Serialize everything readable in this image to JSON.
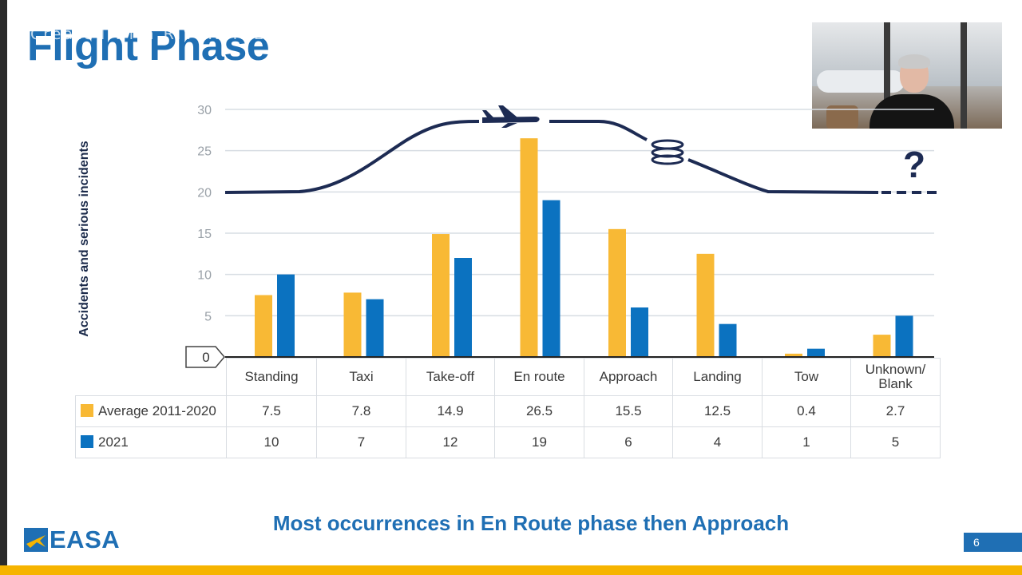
{
  "slide": {
    "title": "Flight Phase",
    "watermark": "Created with RIVERSIDE",
    "message": "Most occurrences in En Route phase then Approach",
    "page_number": "6",
    "logo_text": "EASA"
  },
  "phase_annotations": {
    "unknown_marker": "?"
  },
  "colors": {
    "average": "#f8b935",
    "year2021": "#0b72c0",
    "accent": "#1f6fb4",
    "flight_path": "#1d2b53"
  },
  "chart_data": {
    "type": "bar",
    "title": "Flight Phase",
    "ylabel": "Accidents and serious incidents",
    "xlabel": "",
    "ylim": [
      0,
      30
    ],
    "yticks": [
      0,
      5,
      10,
      15,
      20,
      25,
      30
    ],
    "grid": true,
    "legend": "table-below",
    "categories": [
      "Standing",
      "Taxi",
      "Take-off",
      "En route",
      "Approach",
      "Landing",
      "Tow",
      "Unknown/\nBlank"
    ],
    "series": [
      {
        "name": "Average 2011-2020",
        "values": [
          7.5,
          7.8,
          14.9,
          26.5,
          15.5,
          12.5,
          0.4,
          2.7
        ]
      },
      {
        "name": "2021",
        "values": [
          10,
          7,
          12,
          19,
          6,
          4,
          1,
          5
        ]
      }
    ]
  }
}
